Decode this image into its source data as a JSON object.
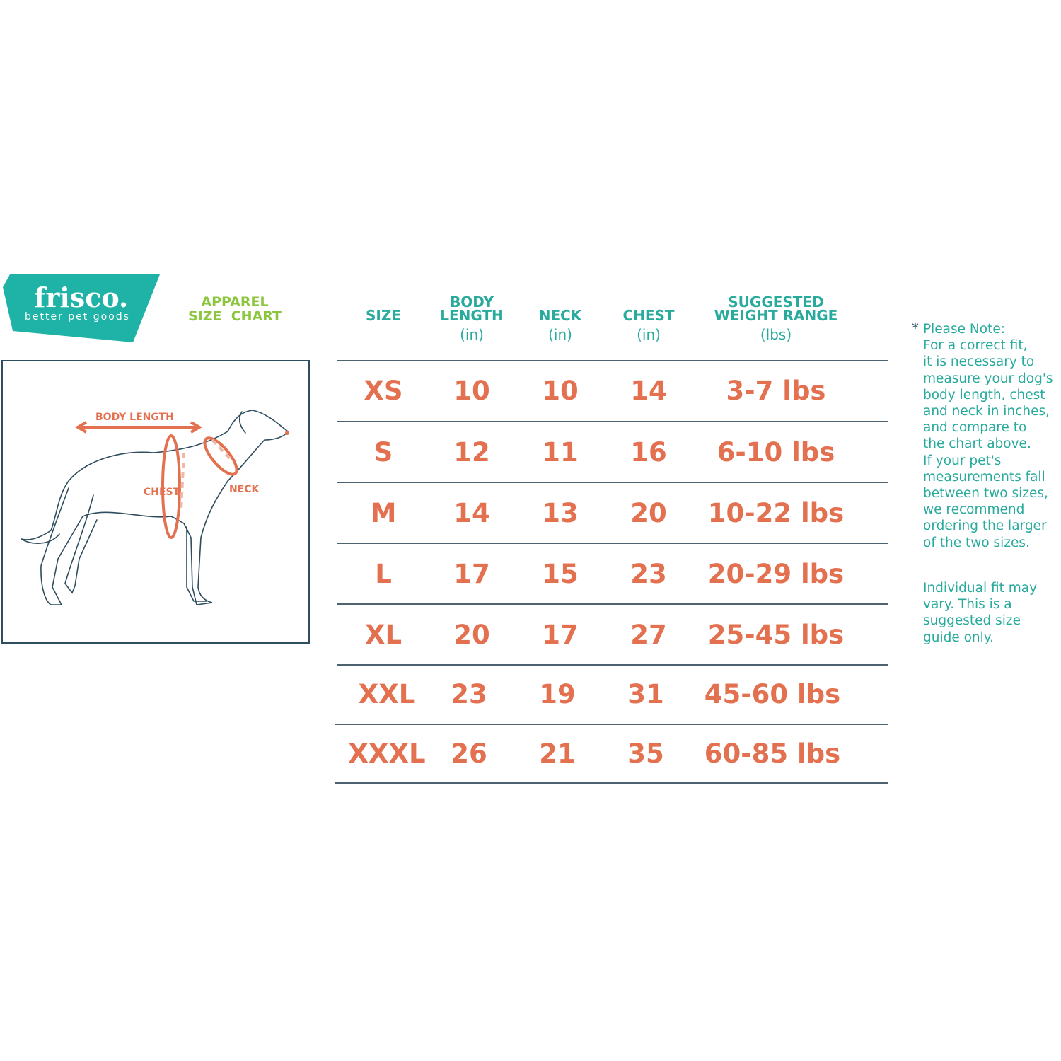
{
  "brand": {
    "name": "frisco.",
    "tagline": "better pet goods"
  },
  "title": {
    "line1": "APPAREL",
    "line2": "SIZE  CHART"
  },
  "colors": {
    "teal": "#28aa9c",
    "logo_bg": "#1eb3a6",
    "coral": "#e3704f",
    "green": "#8cc63f",
    "outline": "#2e4d5e"
  },
  "diagram": {
    "body_length": "BODY LENGTH",
    "chest": "CHEST",
    "neck": "NECK"
  },
  "table": {
    "headers": [
      {
        "line1": "",
        "line2": "SIZE",
        "unit": ""
      },
      {
        "line1": "BODY",
        "line2": "LENGTH",
        "unit": "(in)"
      },
      {
        "line1": "",
        "line2": "NECK",
        "unit": "(in)"
      },
      {
        "line1": "",
        "line2": "CHEST",
        "unit": "(in)"
      },
      {
        "line1": "SUGGESTED",
        "line2": "WEIGHT RANGE",
        "unit": "(lbs)"
      }
    ],
    "rows": [
      [
        "XS",
        "10",
        "10",
        "14",
        "3-7 lbs"
      ],
      [
        "S",
        "12",
        "11",
        "16",
        "6-10 lbs"
      ],
      [
        "M",
        "14",
        "13",
        "20",
        "10-22 lbs"
      ],
      [
        "L",
        "17",
        "15",
        "23",
        "20-29 lbs"
      ],
      [
        "XL",
        "20",
        "17",
        "27",
        "25-45 lbs"
      ],
      [
        "XXL",
        "23",
        "19",
        "31",
        "45-60 lbs"
      ],
      [
        "XXXL",
        "26",
        "21",
        "35",
        "60-85 lbs"
      ]
    ]
  },
  "note": {
    "asterisk": "*",
    "lines": [
      "Please Note:",
      "For a correct fit,",
      "it is necessary to",
      "measure your dog's",
      "body length, chest",
      "and neck in inches,",
      "and compare to",
      "the chart above.",
      "If your pet's",
      "measurements fall",
      "between two sizes,",
      "we recommend",
      "ordering the larger",
      "of the two sizes."
    ],
    "lines2": [
      "Individual fit may",
      "vary. This is a",
      "suggested size",
      "guide only."
    ]
  }
}
